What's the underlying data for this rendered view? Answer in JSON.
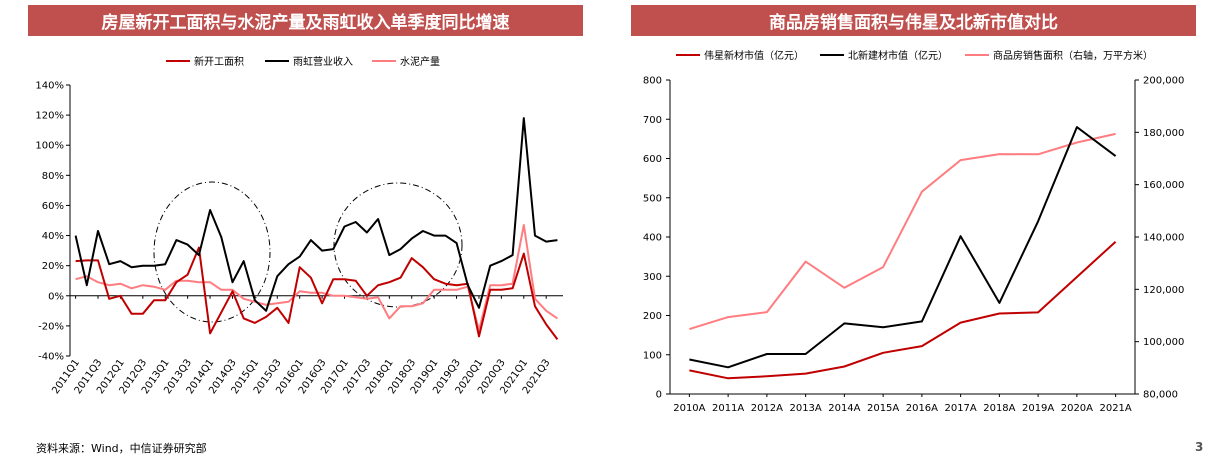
{
  "page": {
    "source": "资料来源：Wind，中信证券研究部",
    "page_number": "3"
  },
  "chart_data": [
    {
      "type": "line",
      "title": "房屋新开工面积与水泥产量及雨虹收入单季度同比增速",
      "xlabel": "",
      "ylabel": "",
      "ylim": [
        -0.4,
        1.4
      ],
      "yticks": [
        "-40%",
        "-20%",
        "0%",
        "20%",
        "40%",
        "60%",
        "80%",
        "100%",
        "120%",
        "140%"
      ],
      "legend_position": "top-center",
      "grid": false,
      "x_tick_labels": [
        "2011Q1",
        "2011Q3",
        "2012Q1",
        "2012Q3",
        "2013Q1",
        "2013Q3",
        "2014Q1",
        "2014Q3",
        "2015Q1",
        "2015Q3",
        "2016Q1",
        "2016Q3",
        "2017Q1",
        "2017Q3",
        "2018Q1",
        "2018Q3",
        "2019Q1",
        "2019Q3",
        "2020Q1",
        "2020Q3",
        "2021Q1",
        "2021Q3"
      ],
      "x": [
        "2011Q1",
        "2011Q2",
        "2011Q3",
        "2011Q4",
        "2012Q1",
        "2012Q2",
        "2012Q3",
        "2012Q4",
        "2013Q1",
        "2013Q2",
        "2013Q3",
        "2013Q4",
        "2014Q1",
        "2014Q2",
        "2014Q3",
        "2014Q4",
        "2015Q1",
        "2015Q2",
        "2015Q3",
        "2015Q4",
        "2016Q1",
        "2016Q2",
        "2016Q3",
        "2016Q4",
        "2017Q1",
        "2017Q2",
        "2017Q3",
        "2017Q4",
        "2018Q1",
        "2018Q2",
        "2018Q3",
        "2018Q4",
        "2019Q1",
        "2019Q2",
        "2019Q3",
        "2019Q4",
        "2020Q1",
        "2020Q2",
        "2020Q3",
        "2020Q4",
        "2021Q1",
        "2021Q2",
        "2021Q3",
        "2021Q4"
      ],
      "series": [
        {
          "name": "新开工面积",
          "color": "#c00000",
          "values": [
            0.23,
            0.235,
            0.235,
            -0.02,
            0.0,
            -0.12,
            -0.12,
            -0.03,
            -0.03,
            0.09,
            0.14,
            0.32,
            -0.25,
            -0.11,
            0.03,
            -0.15,
            -0.18,
            -0.14,
            -0.08,
            -0.18,
            0.19,
            0.12,
            -0.05,
            0.11,
            0.11,
            0.1,
            0.0,
            0.07,
            0.09,
            0.12,
            0.25,
            0.19,
            0.11,
            0.08,
            0.07,
            0.08,
            -0.27,
            0.04,
            0.04,
            0.05,
            0.28,
            -0.07,
            -0.19,
            -0.29
          ]
        },
        {
          "name": "雨虹营业收入",
          "color": "#000000",
          "values": [
            0.4,
            0.07,
            0.43,
            0.21,
            0.23,
            0.19,
            0.2,
            0.2,
            0.21,
            0.37,
            0.34,
            0.27,
            0.57,
            0.39,
            0.09,
            0.23,
            -0.03,
            -0.1,
            0.13,
            0.21,
            0.26,
            0.37,
            0.3,
            0.31,
            0.46,
            0.49,
            0.42,
            0.51,
            0.27,
            0.31,
            0.38,
            0.43,
            0.4,
            0.4,
            0.35,
            0.07,
            -0.08,
            0.2,
            0.23,
            0.27,
            1.18,
            0.4,
            0.36,
            0.37
          ]
        },
        {
          "name": "水泥产量",
          "color": "#ff7c80",
          "values": [
            0.11,
            0.13,
            0.09,
            0.07,
            0.08,
            0.05,
            0.07,
            0.06,
            0.04,
            0.1,
            0.1,
            0.09,
            0.09,
            0.04,
            0.04,
            -0.02,
            -0.04,
            -0.06,
            -0.05,
            -0.04,
            0.03,
            0.02,
            0.02,
            0.0,
            0.0,
            -0.01,
            -0.02,
            -0.01,
            -0.15,
            -0.07,
            -0.07,
            -0.05,
            0.04,
            0.04,
            0.04,
            0.06,
            -0.23,
            0.07,
            0.07,
            0.08,
            0.47,
            -0.02,
            -0.1,
            -0.15
          ]
        }
      ]
    },
    {
      "type": "line",
      "title": "商品房销售面积与伟星及北新市值对比",
      "xlabel": "",
      "ylabel": "",
      "categories": [
        "2010A",
        "2011A",
        "2012A",
        "2013A",
        "2014A",
        "2015A",
        "2016A",
        "2017A",
        "2018A",
        "2019A",
        "2020A",
        "2021A"
      ],
      "ylim": [
        0,
        800
      ],
      "y2lim": [
        80000,
        200000
      ],
      "yticks": [
        "0",
        "100",
        "200",
        "300",
        "400",
        "500",
        "600",
        "700",
        "800"
      ],
      "y2ticks": [
        "80,000",
        "100,000",
        "120,000",
        "140,000",
        "160,000",
        "180,000",
        "200,000"
      ],
      "legend_position": "top-center",
      "grid": false,
      "series": [
        {
          "name": "伟星新材市值（亿元）",
          "axis": "left",
          "color": "#c00000",
          "values": [
            60,
            40,
            45,
            52,
            70,
            105,
            122,
            182,
            205,
            208,
            298,
            388
          ]
        },
        {
          "name": "北新建材市值（亿元）",
          "axis": "left",
          "color": "#000000",
          "values": [
            88,
            68,
            102,
            102,
            180,
            170,
            185,
            402,
            232,
            440,
            680,
            606
          ]
        },
        {
          "name": "商品房销售面积（右轴，万平方米）",
          "axis": "right",
          "color": "#ff7c80",
          "values": [
            104800,
            109400,
            111300,
            130600,
            120600,
            128500,
            157300,
            169400,
            171700,
            171600,
            176100,
            179400
          ]
        }
      ]
    }
  ]
}
